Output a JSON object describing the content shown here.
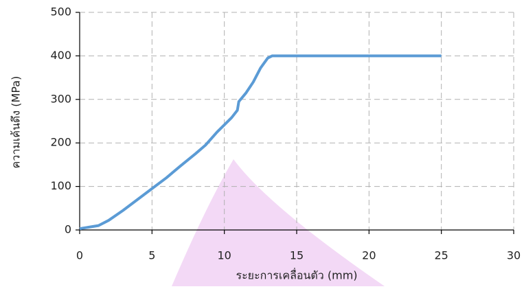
{
  "chart_data": {
    "type": "line",
    "xlabel": "ระยะการเคลื่อนตัว (mm)",
    "ylabel": "ความเค้นดึง (MPa)",
    "x": [
      0,
      1.3,
      2,
      3,
      4,
      5,
      6,
      7,
      8,
      8.7,
      9.5,
      10.5,
      10.9,
      11,
      11.5,
      12,
      12.5,
      13,
      13.3,
      25
    ],
    "series": [
      {
        "color": "#5b9bd5",
        "values": [
          3,
          10,
          22,
          45,
          70,
          95,
          120,
          148,
          175,
          195,
          225,
          258,
          275,
          295,
          315,
          340,
          372,
          395,
          400,
          400
        ]
      }
    ],
    "xlim": [
      0,
      30
    ],
    "xticks": [
      0,
      5,
      10,
      15,
      20,
      25,
      30
    ],
    "ylim": [
      0,
      500
    ],
    "yticks": [
      0,
      100,
      200,
      300,
      400,
      500
    ],
    "grid": true
  }
}
